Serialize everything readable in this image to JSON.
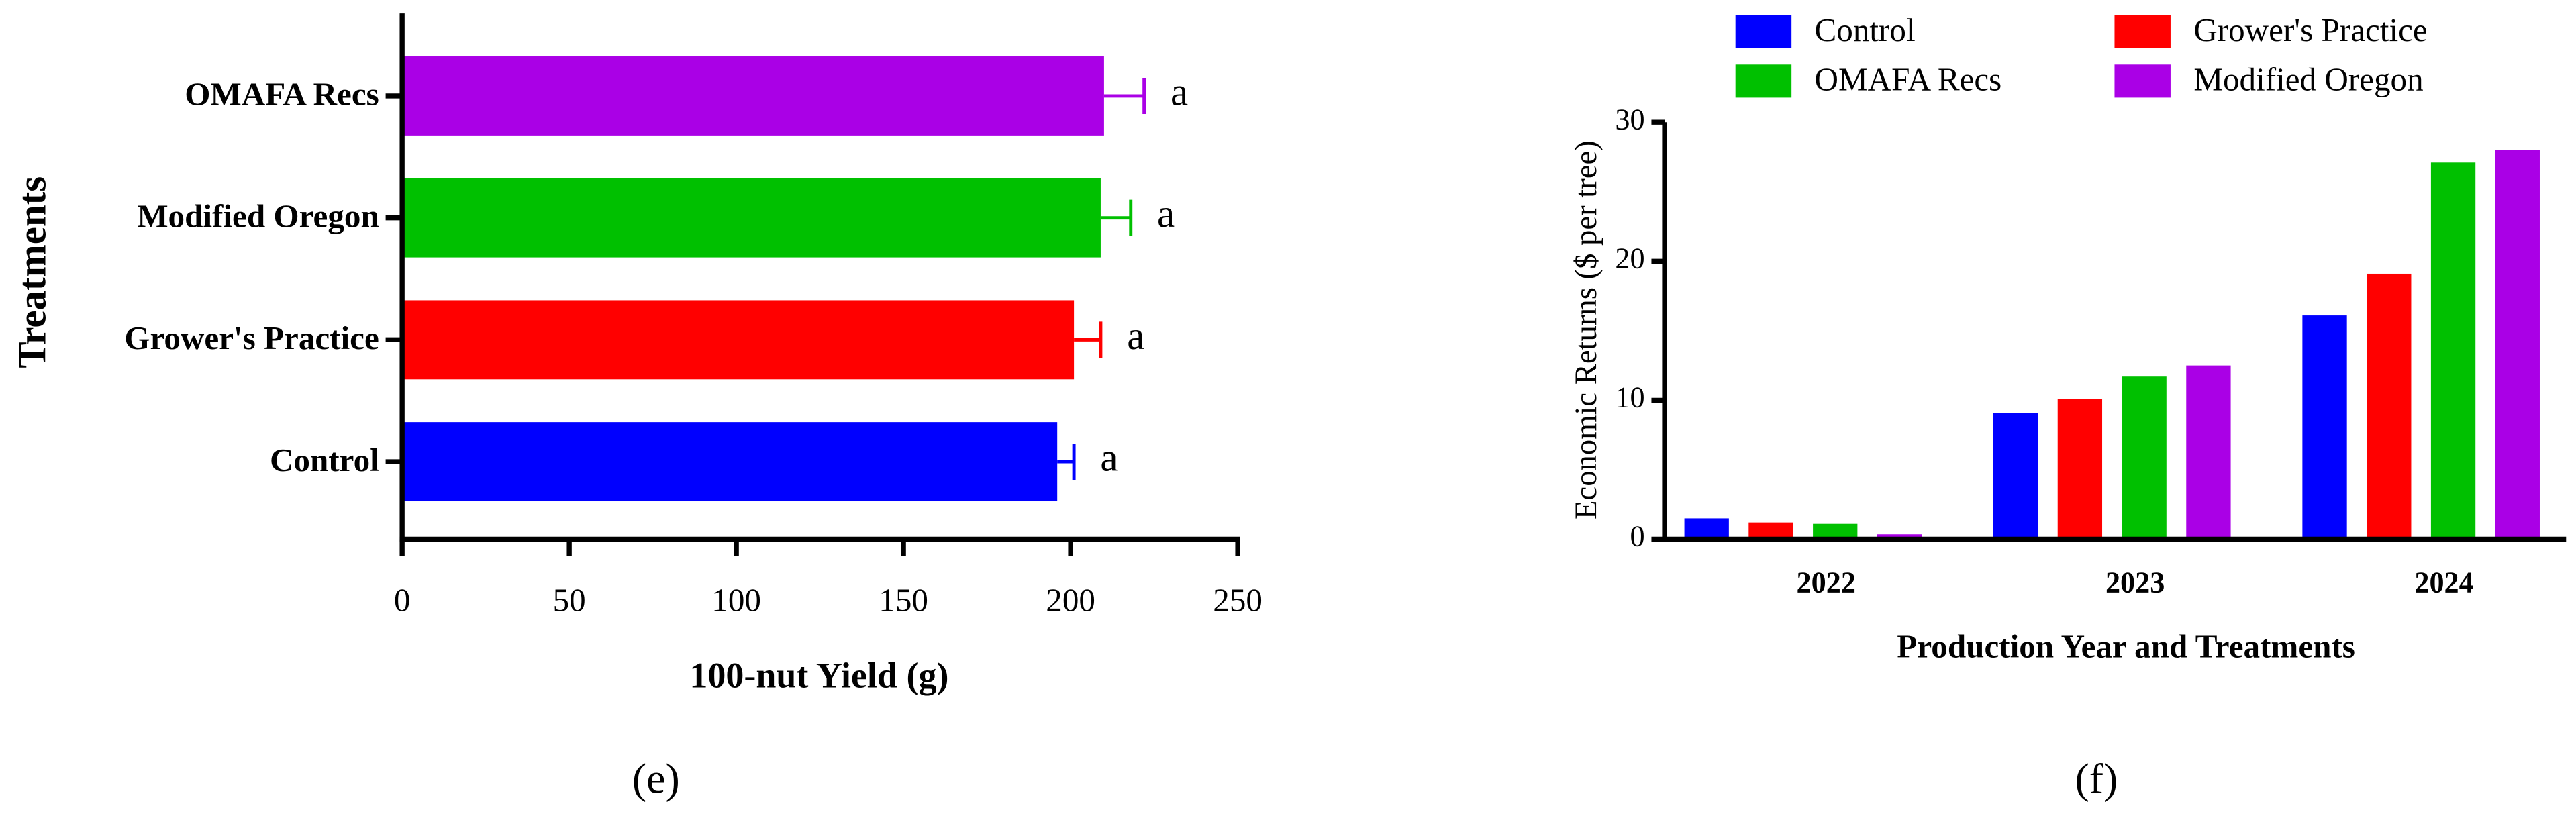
{
  "chart_data": [
    {
      "type": "hbar",
      "caption": "(e)",
      "xlabel": "100-nut Yield (g)",
      "ylabel": "Treatments",
      "categories": [
        "Control",
        "Grower's Practice",
        "Modified Oregon",
        "OMAFA Recs"
      ],
      "values": [
        196,
        201,
        209,
        210
      ],
      "errors": [
        5,
        8,
        9,
        12
      ],
      "annotations": [
        "a",
        "a",
        "a",
        "a"
      ],
      "colors": [
        "#0000ff",
        "#ff0000",
        "#00c000",
        "#aa00e6"
      ],
      "xlim": [
        0,
        250
      ],
      "xticks": [
        0,
        50,
        100,
        150,
        200,
        250
      ]
    },
    {
      "type": "bar",
      "caption": "(f)",
      "xlabel": "Production Year and Treatments",
      "ylabel": "Economic Returns ($ per tree)",
      "categories": [
        "2022",
        "2023",
        "2024"
      ],
      "series": [
        {
          "name": "Control",
          "color": "#0000ff",
          "values": [
            1.5,
            9.1,
            16.1
          ]
        },
        {
          "name": "Grower's Practice",
          "color": "#ff0000",
          "values": [
            1.2,
            10.1,
            19.1
          ]
        },
        {
          "name": "OMAFA Recs",
          "color": "#00c000",
          "values": [
            1.1,
            11.7,
            27.1
          ]
        },
        {
          "name": "Modified Oregon",
          "color": "#aa00e6",
          "values": [
            0.35,
            12.5,
            28.0
          ]
        }
      ],
      "ylim": [
        0,
        30
      ],
      "yticks": [
        0,
        10,
        20,
        30
      ]
    }
  ]
}
